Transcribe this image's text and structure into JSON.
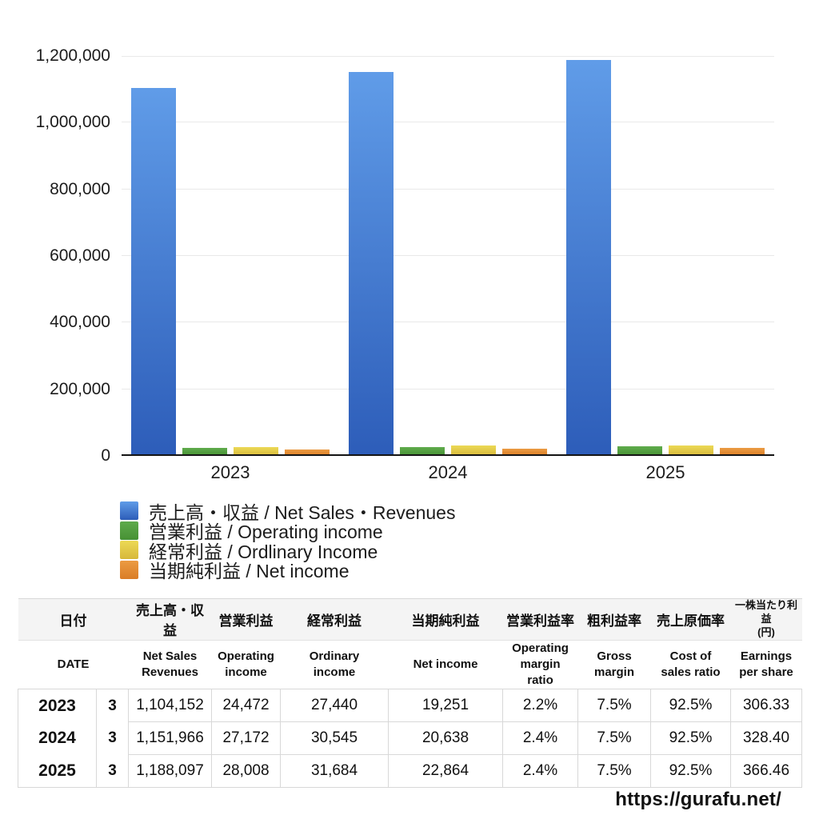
{
  "chart_data": {
    "type": "bar",
    "categories": [
      "2023",
      "2024",
      "2025"
    ],
    "series": [
      {
        "name": "売上高・収益 / Net Sales・Revenues",
        "values": [
          1104152,
          1151966,
          1188097
        ],
        "color_top": "#609CE8",
        "color_bottom": "#2D5DB9"
      },
      {
        "name": "営業利益 / Operating income",
        "values": [
          24472,
          27172,
          28008
        ],
        "color_top": "#5FAB4C",
        "color_bottom": "#479134"
      },
      {
        "name": "経常利益 / Ordlinary Income",
        "values": [
          27440,
          30545,
          31684
        ],
        "color_top": "#ECD955",
        "color_bottom": "#D7B83B"
      },
      {
        "name": "当期純利益 / Net income",
        "values": [
          19251,
          20638,
          22864
        ],
        "color_top": "#EB9B43",
        "color_bottom": "#DA7D26"
      }
    ],
    "title": "",
    "xlabel": "",
    "ylabel": "",
    "ylim": [
      0,
      1200000
    ],
    "ytick_step": 200000,
    "yticks_labels": [
      "0",
      "200,000",
      "400,000",
      "600,000",
      "800,000",
      "1,000,000",
      "1,200,000"
    ],
    "grid": true,
    "legend_position": "bottom-left"
  },
  "table": {
    "header_jp": [
      "日付",
      "売上高・収益",
      "営業利益",
      "経常利益",
      "当期純利益",
      "営業利益率",
      "粗利益率",
      "売上原価率",
      "一株当たり利益\n(円)"
    ],
    "header_en": [
      "DATE",
      "Net Sales\nRevenues",
      "Operating\nincome",
      "Ordinary\nincome",
      "Net income",
      "Operating\nmargin\nratio",
      "Gross\nmargin",
      "Cost of\nsales ratio",
      "Earnings\nper share"
    ],
    "rows": [
      {
        "year": "2023",
        "month": "3",
        "values": [
          "1,104,152",
          "24,472",
          "27,440",
          "19,251",
          "2.2%",
          "7.5%",
          "92.5%",
          "306.33"
        ]
      },
      {
        "year": "2024",
        "month": "3",
        "values": [
          "1,151,966",
          "27,172",
          "30,545",
          "20,638",
          "2.4%",
          "7.5%",
          "92.5%",
          "328.40"
        ]
      },
      {
        "year": "2025",
        "month": "3",
        "values": [
          "1,188,097",
          "28,008",
          "31,684",
          "22,864",
          "2.4%",
          "7.5%",
          "92.5%",
          "366.46"
        ]
      }
    ]
  },
  "footer": {
    "url": "https://gurafu.net/"
  }
}
